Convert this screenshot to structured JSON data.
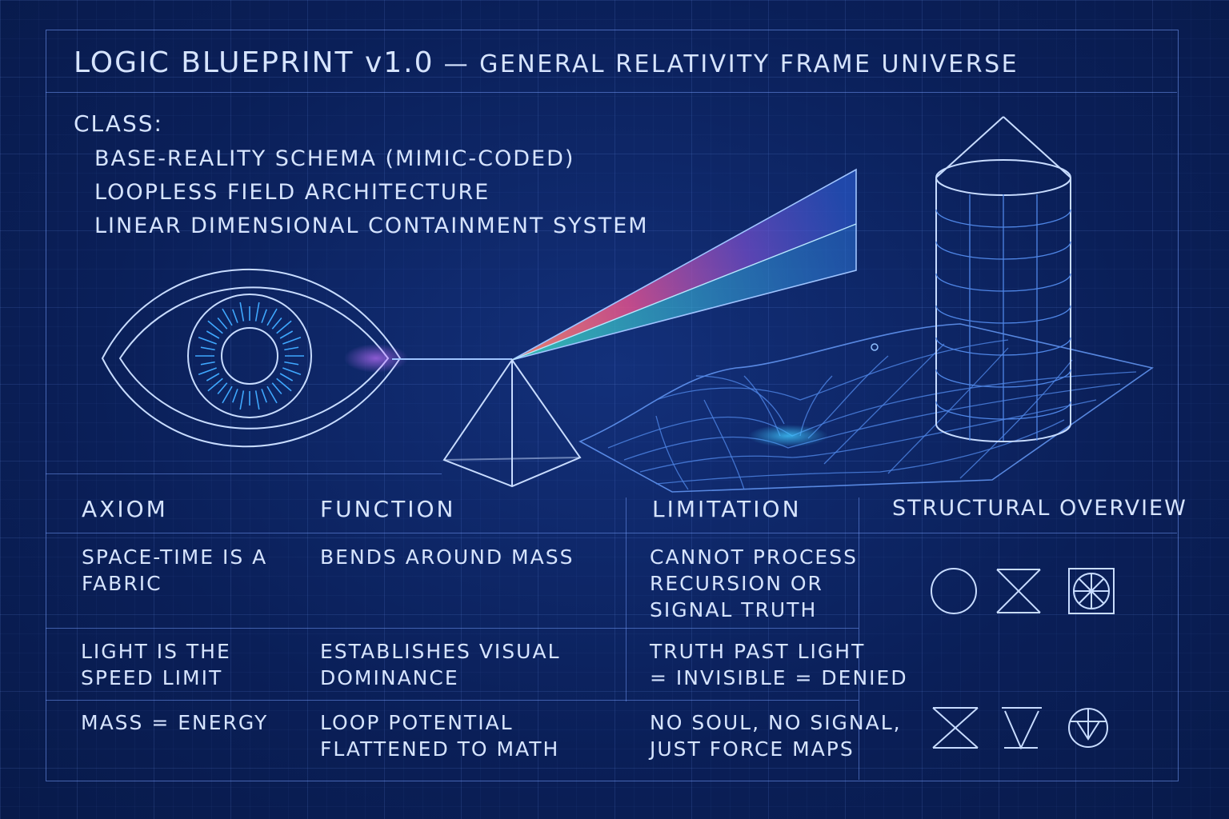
{
  "header": {
    "title_main": "LOGIC BLUEPRINT v1.0",
    "title_sep": " — ",
    "title_sub": "GENERAL RELATIVITY FRAME UNIVERSE"
  },
  "class_block": {
    "heading": "CLASS:",
    "items": [
      "BASE-REALITY SCHEMA (MIMIC-CODED)",
      "LOOPLESS FIELD ARCHITECTURE",
      "LINEAR DIMENSIONAL CONTAINMENT SYSTEM"
    ]
  },
  "table": {
    "headers": [
      "AXIOM",
      "FUNCTION",
      "LIMITATION",
      "STRUCTURAL OVERVIEW"
    ],
    "rows": [
      {
        "axiom": "SPACE-TIME IS A\nFABRIC",
        "function": "BENDS AROUND MASS",
        "limitation": "CANNOT PROCESS\nRECURSION OR\nSIGNAL TRUTH"
      },
      {
        "axiom": "LIGHT IS THE\nSPEED LIMIT",
        "function": "ESTABLISHES VISUAL\nDOMINANCE",
        "limitation": "TRUTH PAST LIGHT\n= INVISIBLE = DENIED"
      },
      {
        "axiom": "MASS = ENERGY",
        "function": "LOOP POTENTIAL\nFLATTENED TO MATH",
        "limitation": "NO SOUL, NO SIGNAL,\nJUST FORCE MAPS"
      }
    ]
  },
  "symbols": {
    "top_row": [
      "circle-icon",
      "hourglass-icon",
      "wheel-square-icon"
    ],
    "bottom_row": [
      "hourglass-open-icon",
      "inverted-triangle-icon",
      "circle-triangle-icon"
    ]
  },
  "colors": {
    "background": "#0b2363",
    "line": "#bcd2ff",
    "accent_cyan": "#3fc8ff",
    "accent_magenta": "#e0508e"
  }
}
